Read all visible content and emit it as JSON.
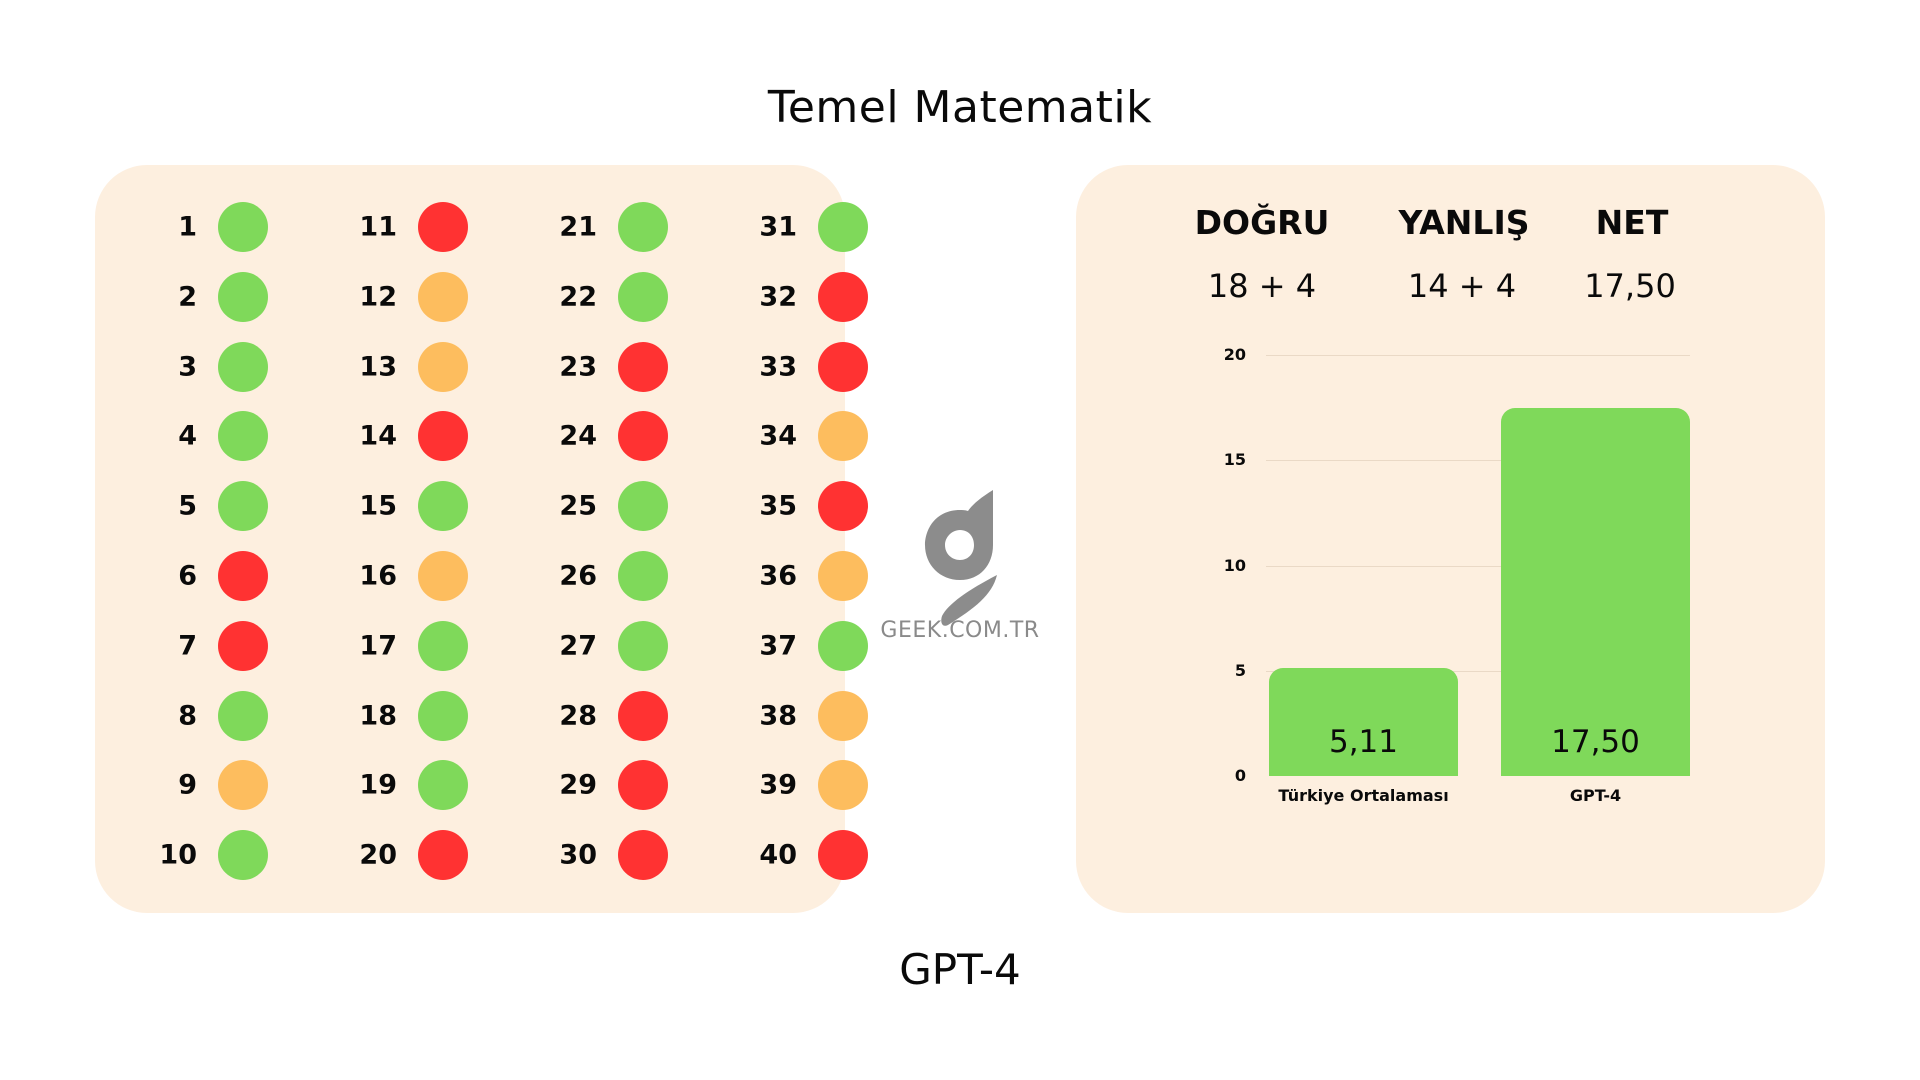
{
  "title": "Temel Matematik",
  "footer": "GPT-4",
  "colors": {
    "correct": "#7fd95a",
    "wrong": "#ff3232",
    "empty": "#fdbd5e",
    "panel": "#fdefdf"
  },
  "answers": [
    {
      "n": "1",
      "s": "correct"
    },
    {
      "n": "2",
      "s": "correct"
    },
    {
      "n": "3",
      "s": "correct"
    },
    {
      "n": "4",
      "s": "correct"
    },
    {
      "n": "5",
      "s": "correct"
    },
    {
      "n": "6",
      "s": "wrong"
    },
    {
      "n": "7",
      "s": "wrong"
    },
    {
      "n": "8",
      "s": "correct"
    },
    {
      "n": "9",
      "s": "empty"
    },
    {
      "n": "10",
      "s": "correct"
    },
    {
      "n": "11",
      "s": "wrong"
    },
    {
      "n": "12",
      "s": "empty"
    },
    {
      "n": "13",
      "s": "empty"
    },
    {
      "n": "14",
      "s": "wrong"
    },
    {
      "n": "15",
      "s": "correct"
    },
    {
      "n": "16",
      "s": "empty"
    },
    {
      "n": "17",
      "s": "correct"
    },
    {
      "n": "18",
      "s": "correct"
    },
    {
      "n": "19",
      "s": "correct"
    },
    {
      "n": "20",
      "s": "wrong"
    },
    {
      "n": "21",
      "s": "correct"
    },
    {
      "n": "22",
      "s": "correct"
    },
    {
      "n": "23",
      "s": "wrong"
    },
    {
      "n": "24",
      "s": "wrong"
    },
    {
      "n": "25",
      "s": "correct"
    },
    {
      "n": "26",
      "s": "correct"
    },
    {
      "n": "27",
      "s": "correct"
    },
    {
      "n": "28",
      "s": "wrong"
    },
    {
      "n": "29",
      "s": "wrong"
    },
    {
      "n": "30",
      "s": "wrong"
    },
    {
      "n": "31",
      "s": "correct"
    },
    {
      "n": "32",
      "s": "wrong"
    },
    {
      "n": "33",
      "s": "wrong"
    },
    {
      "n": "34",
      "s": "empty"
    },
    {
      "n": "35",
      "s": "wrong"
    },
    {
      "n": "36",
      "s": "empty"
    },
    {
      "n": "37",
      "s": "correct"
    },
    {
      "n": "38",
      "s": "empty"
    },
    {
      "n": "39",
      "s": "empty"
    },
    {
      "n": "40",
      "s": "wrong"
    }
  ],
  "logo": {
    "text": "GEEK.COM.TR",
    "icon": "geek-g-logo-icon"
  },
  "stats": {
    "correct_label": "DOĞRU",
    "correct_value": "18 + 4",
    "wrong_label": "YANLIŞ",
    "wrong_value": "14 + 4",
    "net_label": "NET",
    "net_value": "17,50"
  },
  "chart_data": {
    "type": "bar",
    "title": "",
    "categories": [
      "Türkiye Ortalaması",
      "GPT-4"
    ],
    "values": [
      5.11,
      17.5
    ],
    "value_labels": [
      "5,11",
      "17,50"
    ],
    "xlabel": "",
    "ylabel": "",
    "ylim": [
      0,
      20
    ],
    "yticks": [
      "0",
      "5",
      "10",
      "15",
      "20"
    ],
    "grid": true,
    "legend": false,
    "bar_color": "#7fd95a"
  }
}
